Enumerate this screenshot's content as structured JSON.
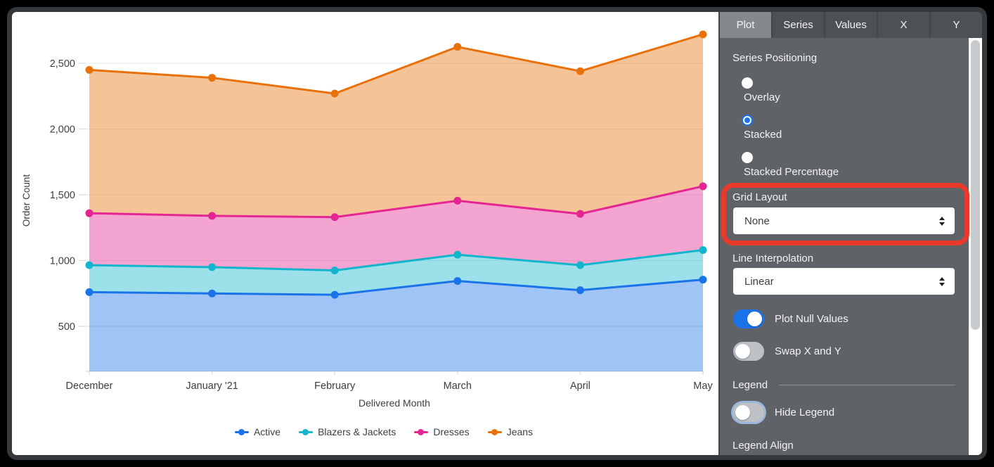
{
  "chart_data": {
    "type": "area",
    "stacked": true,
    "xlabel": "Delivered Month",
    "ylabel": "Order Count",
    "categories": [
      "December",
      "January '21",
      "February",
      "March",
      "April",
      "May"
    ],
    "y_ticks": [
      500,
      1000,
      1500,
      2000,
      2500
    ],
    "y_tick_labels": [
      "500",
      "1,000",
      "1,500",
      "2,000",
      "2,500"
    ],
    "ylim_rendered": [
      150,
      2850
    ],
    "grid": true,
    "legend_position": "bottom",
    "series": [
      {
        "name": "Active",
        "color": "#1a73e8",
        "values": [
          760,
          750,
          740,
          845,
          775,
          855
        ],
        "cumulative": [
          760,
          750,
          740,
          845,
          775,
          855
        ]
      },
      {
        "name": "Blazers & Jackets",
        "color": "#12b5cb",
        "values": [
          205,
          200,
          185,
          200,
          190,
          225
        ],
        "cumulative": [
          965,
          950,
          925,
          1045,
          965,
          1080
        ]
      },
      {
        "name": "Dresses",
        "color": "#e52592",
        "values": [
          395,
          390,
          405,
          410,
          390,
          485
        ],
        "cumulative": [
          1360,
          1340,
          1330,
          1455,
          1355,
          1565
        ]
      },
      {
        "name": "Jeans",
        "color": "#e8710a",
        "values": [
          1090,
          1050,
          940,
          1170,
          1085,
          1155
        ],
        "cumulative": [
          2450,
          2390,
          2270,
          2625,
          2440,
          2720
        ]
      }
    ]
  },
  "panel": {
    "tabs": [
      {
        "label": "Plot",
        "active": true
      },
      {
        "label": "Series",
        "active": false
      },
      {
        "label": "Values",
        "active": false
      },
      {
        "label": "X",
        "active": false
      },
      {
        "label": "Y",
        "active": false
      }
    ],
    "series_positioning": {
      "label": "Series Positioning",
      "options": [
        {
          "label": "Overlay",
          "selected": false
        },
        {
          "label": "Stacked",
          "selected": true
        },
        {
          "label": "Stacked Percentage",
          "selected": false
        }
      ]
    },
    "grid_layout": {
      "label": "Grid Layout",
      "value": "None"
    },
    "line_interpolation": {
      "label": "Line Interpolation",
      "value": "Linear"
    },
    "toggles": [
      {
        "label": "Plot Null Values",
        "on": true,
        "focused": false
      },
      {
        "label": "Swap X and Y",
        "on": false,
        "focused": false
      },
      {
        "label": "Hide Legend",
        "on": false,
        "focused": true
      }
    ],
    "legend_section": {
      "label": "Legend"
    },
    "legend_align": {
      "label": "Legend Align"
    }
  },
  "annotation": {
    "shape": "rounded-rect",
    "color": "#e8392b",
    "around": "Grid Layout"
  },
  "colors": {
    "accent_blue": "#1a73e8",
    "panel_bg": "#5f6368",
    "tabbar_bg": "#4d5156",
    "active_tab_bg": "#85898e",
    "grid_line": "#e8eaed",
    "axis_text": "#3c4043",
    "toggle_off": "#bdc1c6"
  }
}
